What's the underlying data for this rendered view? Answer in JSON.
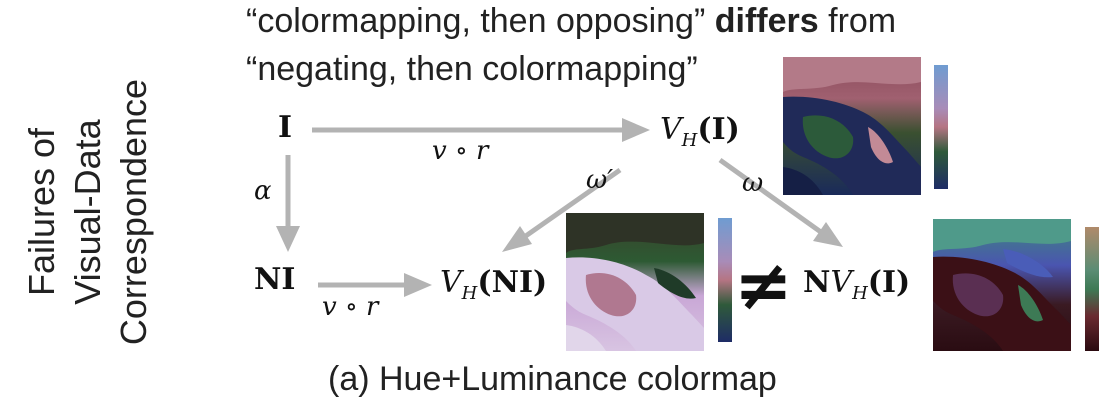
{
  "side_title": {
    "line1": "Failures of",
    "line2": "Visual-Data",
    "line3": "Correspondence"
  },
  "headline": {
    "part1": "“colormapping, then opposing”",
    "bold": "differs",
    "part2": "from",
    "line2": "“negating, then colormapping”"
  },
  "nodes": {
    "I": "I",
    "NI": "NI",
    "VH_I_prefix": "V",
    "VH_I_sub": "H",
    "VH_I_arg": "(I)",
    "VH_NI_prefix": "V",
    "VH_NI_sub": "H",
    "VH_NI_arg": "(NI)",
    "NVH_I_N": "N",
    "NVH_I_prefix": "V",
    "NVH_I_sub": "H",
    "NVH_I_arg": "(I)"
  },
  "edge_labels": {
    "top": "v ∘ r",
    "bottom": "v ∘ r",
    "alpha": "α",
    "omega_prime": "ω′",
    "omega": "ω"
  },
  "neq_symbol": "≠",
  "caption": "(a) Hue+Luminance colormap",
  "colors": {
    "arrow": "#b3b3b3",
    "text": "#222222"
  },
  "images": [
    {
      "name": "colormapped-image",
      "icon": "italy-map-thumbnail"
    },
    {
      "name": "negated-colormapped-image",
      "icon": "italy-map-thumbnail"
    },
    {
      "name": "opposed-colormapped-image",
      "icon": "italy-map-thumbnail"
    }
  ]
}
